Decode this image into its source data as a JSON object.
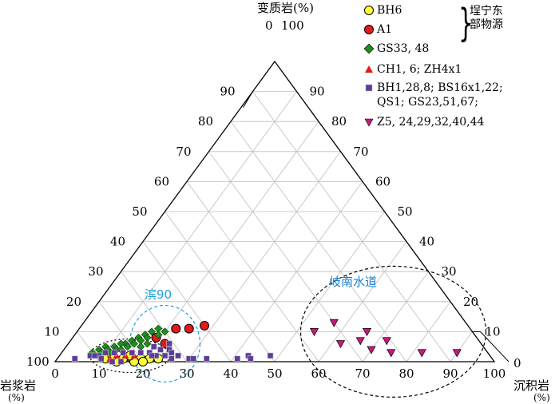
{
  "axes": {
    "top_label": "变质岩(%)",
    "left_label_line1": "岩浆岩",
    "left_label_line2": "(%)",
    "right_label_line1": "沉积岩",
    "right_label_line2": "(%)",
    "corner_left": "100",
    "corner_right": "0",
    "corner_top_left": "0",
    "corner_top_right": "100"
  },
  "ticks": {
    "bottom": [
      "0",
      "10",
      "20",
      "30",
      "40",
      "50",
      "60",
      "70",
      "80",
      "90",
      "100"
    ],
    "left": [
      "10",
      "20",
      "30",
      "40",
      "50",
      "60",
      "70",
      "80",
      "90"
    ],
    "right": [
      "90",
      "80",
      "70",
      "60",
      "50",
      "40",
      "30",
      "20",
      "10"
    ]
  },
  "annotations": {
    "bin90": "滨90",
    "qinan": "岐南水道"
  },
  "legend": {
    "group_label_line1": "埕宁东",
    "group_label_line2": "部物源",
    "items": [
      {
        "label": "BH6",
        "symbol": "circle",
        "color": "#ffff33"
      },
      {
        "label": "A1",
        "symbol": "circle",
        "color": "#e31a1c"
      },
      {
        "label": "GS33, 48",
        "symbol": "diamond",
        "color": "#228b22"
      },
      {
        "label": "CH1, 6; ZH4x1",
        "symbol": "triangle-up",
        "color": "#e31a1c"
      },
      {
        "label": "BH1,28,8; BS16x1,22;\nQS1; GS23,51,67;",
        "symbol": "square",
        "color": "#5e3c99"
      },
      {
        "label": "Z5, 24,29,32,40,44",
        "symbol": "triangle-down",
        "color": "#c51b7d"
      }
    ]
  },
  "chart_data": {
    "type": "ternary",
    "components": [
      "变质岩",
      "沉积岩",
      "岩浆岩"
    ],
    "bottom_axis": "沉积岩",
    "grid": true,
    "series": [
      {
        "name": "Z5, 24,29,32,40,44",
        "symbol": "triangle-down",
        "points": [
          [
            57,
            13
          ],
          [
            54,
            10
          ],
          [
            66,
            10
          ],
          [
            62,
            6
          ],
          [
            66,
            7
          ],
          [
            72,
            7
          ],
          [
            82,
            3
          ],
          [
            90,
            3
          ],
          [
            70,
            4
          ],
          [
            75,
            3
          ]
        ]
      },
      {
        "name": "A1",
        "symbol": "circle",
        "points": [
          [
            22,
            11
          ],
          [
            25,
            11
          ],
          [
            28,
            12
          ],
          [
            22,
            6
          ],
          [
            19,
            8
          ]
        ]
      },
      {
        "name": "BH6",
        "symbol": "circle",
        "points": [
          [
            11,
            1
          ],
          [
            13,
            1
          ],
          [
            15,
            1
          ],
          [
            17,
            1
          ],
          [
            19,
            1
          ],
          [
            21,
            1
          ],
          [
            23,
            1
          ],
          [
            14,
            0
          ],
          [
            18,
            0
          ],
          [
            20,
            0
          ],
          [
            16,
            2
          ],
          [
            12,
            2
          ]
        ]
      },
      {
        "name": "GS33, 48",
        "symbol": "diamond",
        "points": [
          [
            18,
            11
          ],
          [
            17,
            10
          ],
          [
            16,
            9
          ],
          [
            17,
            8
          ],
          [
            15,
            8
          ],
          [
            16,
            7
          ],
          [
            14,
            7
          ],
          [
            15,
            6
          ],
          [
            13,
            6
          ],
          [
            12,
            6
          ],
          [
            14,
            5
          ],
          [
            11,
            5
          ],
          [
            12,
            4
          ],
          [
            9,
            5
          ],
          [
            10,
            4
          ],
          [
            8,
            4
          ],
          [
            9,
            3
          ],
          [
            7,
            3
          ],
          [
            11,
            3
          ],
          [
            13,
            4
          ],
          [
            19,
            9
          ],
          [
            20,
            10
          ],
          [
            18,
            6
          ],
          [
            17,
            5
          ]
        ]
      },
      {
        "name": "CH1, 6; ZH4x1",
        "symbol": "triangle-up",
        "points": [
          [
            13,
            2
          ],
          [
            15,
            2
          ],
          [
            17,
            2
          ],
          [
            12,
            1
          ]
        ]
      },
      {
        "name": "BH1,28,8; BS16x1,22; QS1; GS23,51,67;",
        "symbol": "square",
        "points": [
          [
            4,
            1
          ],
          [
            7,
            2
          ],
          [
            9,
            2
          ],
          [
            10,
            3
          ],
          [
            12,
            3
          ],
          [
            14,
            3
          ],
          [
            16,
            3
          ],
          [
            18,
            3
          ],
          [
            20,
            3
          ],
          [
            22,
            2
          ],
          [
            24,
            2
          ],
          [
            26,
            1
          ],
          [
            30,
            1
          ],
          [
            31,
            1
          ],
          [
            34,
            1
          ],
          [
            41,
            1
          ],
          [
            43,
            2
          ],
          [
            44,
            1
          ],
          [
            48,
            2
          ],
          [
            20,
            5
          ],
          [
            22,
            4
          ],
          [
            24,
            4
          ],
          [
            13,
            0
          ],
          [
            15,
            0
          ],
          [
            21,
            2
          ],
          [
            25,
            3
          ],
          [
            27,
            2
          ],
          [
            23,
            6
          ],
          [
            10,
            1
          ],
          [
            8,
            2
          ]
        ]
      }
    ],
    "ellipses": [
      {
        "label": "滨90",
        "center": [
          22,
          6
        ]
      },
      {
        "label": "",
        "center": [
          16,
          2
        ]
      },
      {
        "label": "岐南水道",
        "center": [
          72,
          10
        ]
      }
    ]
  }
}
